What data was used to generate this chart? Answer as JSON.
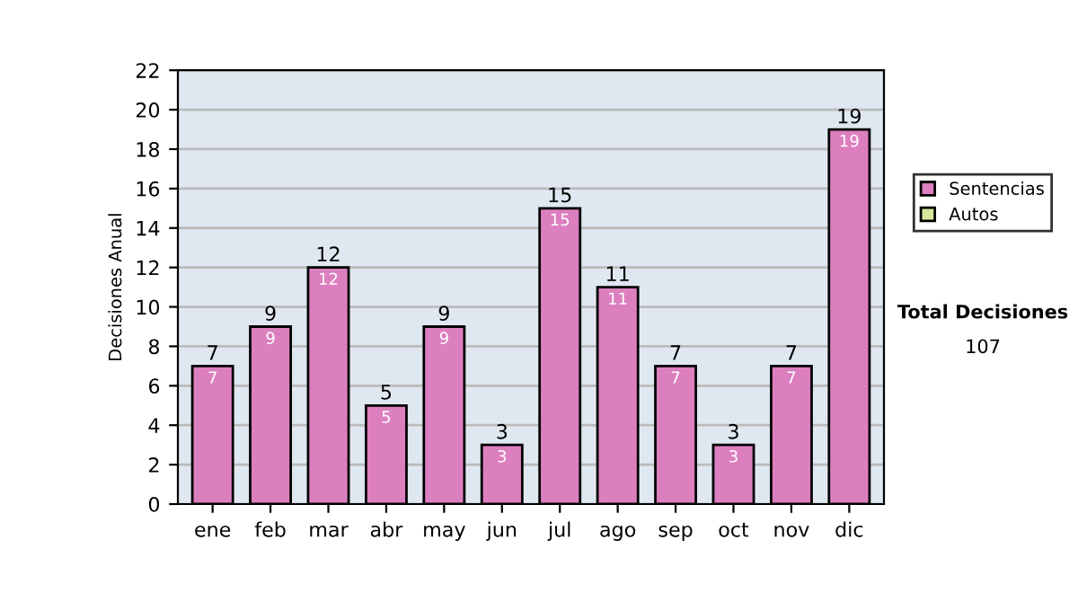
{
  "chart_data": {
    "type": "bar",
    "stacked": true,
    "ylabel": "Decisiones Anual",
    "categories": [
      "ene",
      "feb",
      "mar",
      "abr",
      "may",
      "jun",
      "jul",
      "ago",
      "sep",
      "oct",
      "nov",
      "dic"
    ],
    "series": [
      {
        "name": "Sentencias",
        "color": "#dc7fbf",
        "values": [
          7,
          9,
          12,
          5,
          9,
          3,
          15,
          11,
          7,
          3,
          7,
          19
        ],
        "value_labels": [
          "7",
          "9",
          "12",
          "5",
          "9",
          "3",
          "15",
          "11",
          "7",
          "3",
          "7",
          "19"
        ]
      },
      {
        "name": "Autos",
        "color": "#d6e89a",
        "values": [
          0,
          0,
          0,
          0,
          0,
          0,
          0,
          0,
          0,
          0,
          0,
          0
        ]
      }
    ],
    "totals": [
      "7",
      "9",
      "12",
      "5",
      "9",
      "3",
      "15",
      "11",
      "7",
      "3",
      "7",
      "19"
    ],
    "ylim": [
      0,
      22
    ],
    "yticks": [
      0,
      2,
      4,
      6,
      8,
      10,
      12,
      14,
      16,
      18,
      20,
      22
    ],
    "grid": "y",
    "legend": "right",
    "annotations": [
      "Total Decisiones",
      "107"
    ]
  }
}
